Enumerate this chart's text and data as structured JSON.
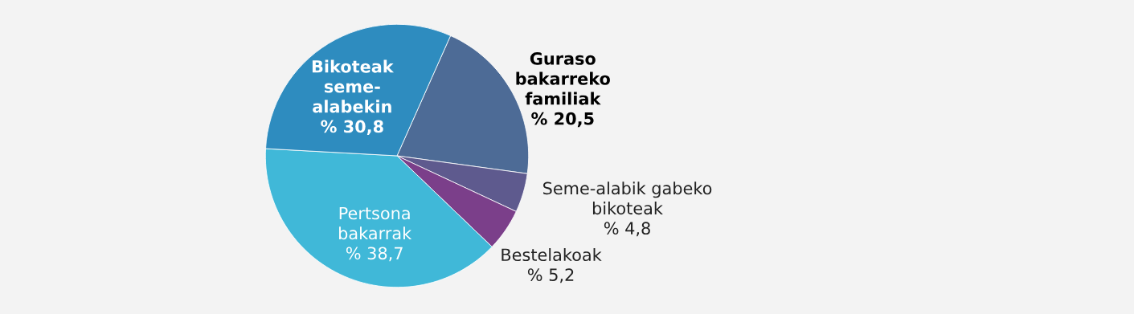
{
  "chart_data": {
    "type": "pie",
    "categories": [
      "Guraso\nbakarreko\nfamiliak",
      "Seme-alabik gabeko\nbikoteak",
      "Bestelakoak",
      "Pertsona\nbakarrak",
      "Bikoteak\nseme-\nalabekin"
    ],
    "values": [
      20.5,
      4.8,
      5.2,
      38.7,
      30.8
    ],
    "value_labels": [
      "% 20,5",
      "% 4,8",
      "% 5,2",
      "% 38,7",
      "% 30,8"
    ],
    "colors": [
      "#4d6b96",
      "#5e5a8e",
      "#7b3f8a",
      "#40b8d8",
      "#2e8cbf"
    ],
    "legend": false
  }
}
